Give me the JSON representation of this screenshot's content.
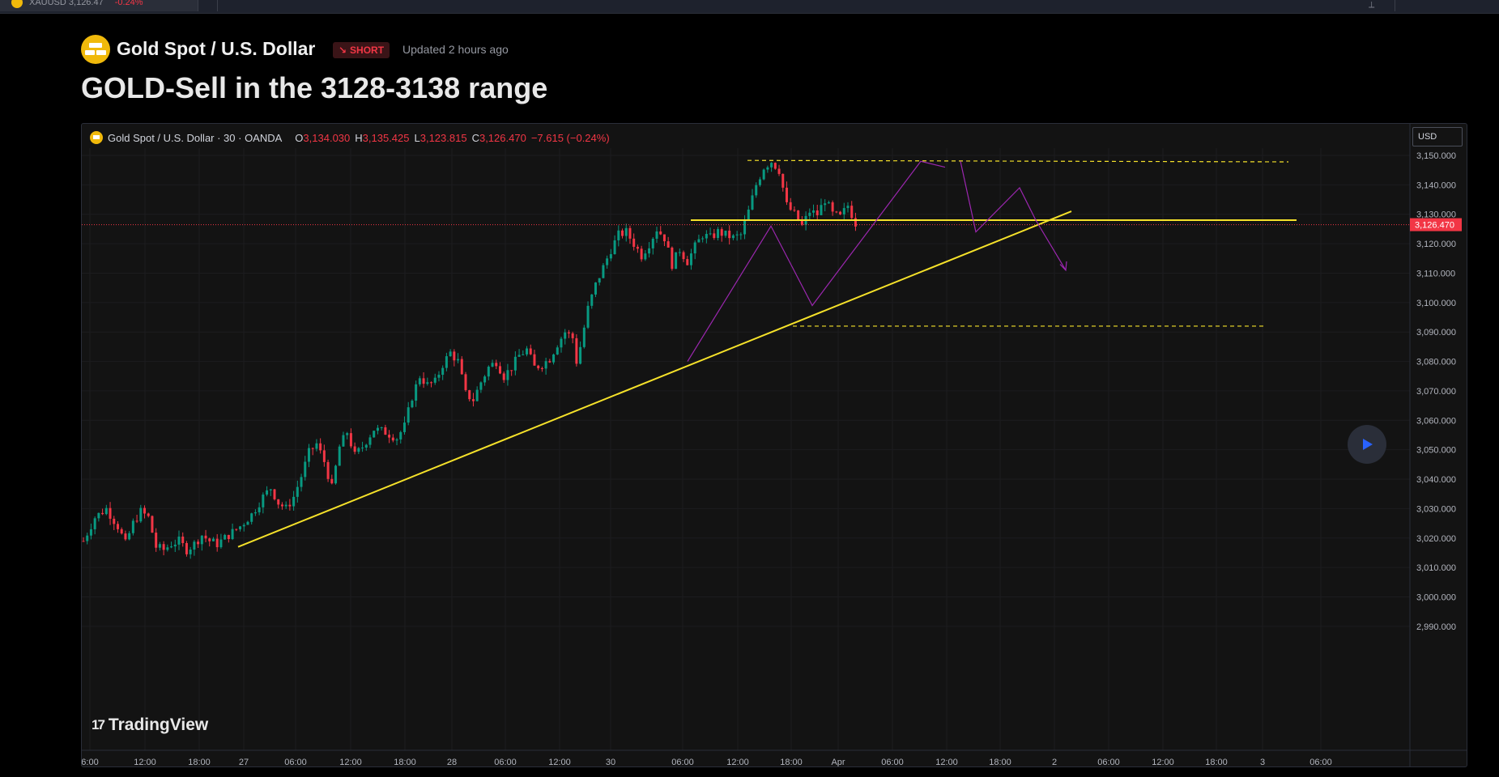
{
  "topbar": {
    "tab_text": "XAUUSD  3,126.47",
    "tab_change": "-0.24%"
  },
  "header": {
    "symbol_name": "Gold Spot / U.S. Dollar",
    "direction_badge": "SHORT",
    "updated": "Updated 2 hours ago",
    "title": "GOLD-Sell in the 3128-3138 range"
  },
  "legend": {
    "symbol": "Gold Spot  /  U.S. Dollar · 30 · OANDA",
    "o_label": "O",
    "o_value": "3,134.030",
    "h_label": "H",
    "h_value": "3,135.425",
    "l_label": "L",
    "l_value": "3,123.815",
    "c_label": "C",
    "c_value": "3,126.470",
    "change": "−7.615 (−0.24%)"
  },
  "currency": "USD",
  "branding": "TradingView",
  "colors": {
    "up": "#089981",
    "down": "#f23645",
    "drawing": "#f5e12a",
    "pattern": "#9c27b0",
    "price_label_bg": "#f23645"
  },
  "chart_data": {
    "type": "candlestick",
    "timeframe": "30",
    "y_axis": {
      "min": 2985,
      "max": 3155,
      "ticks": [
        3150,
        3140,
        3130,
        3120,
        3110,
        3100,
        3090,
        3080,
        3070,
        3060,
        3050,
        3040,
        3030,
        3020,
        3010,
        3000,
        2990
      ],
      "tick_labels": [
        "3,150.000",
        "3,140.000",
        "3,130.000",
        "3,120.000",
        "3,110.000",
        "3,100.000",
        "3,090.000",
        "3,080.000",
        "3,070.000",
        "3,060.000",
        "3,050.000",
        "3,040.000",
        "3,030.000",
        "3,020.000",
        "3,010.000",
        "3,000.000",
        "2,990.000"
      ]
    },
    "x_axis": {
      "labels": [
        "6:00",
        "12:00",
        "18:00",
        "27",
        "06:00",
        "12:00",
        "18:00",
        "28",
        "06:00",
        "12:00",
        "30",
        "06:00",
        "12:00",
        "18:00",
        "Apr",
        "06:00",
        "12:00",
        "18:00",
        "2",
        "06:00",
        "12:00",
        "18:00",
        "3",
        "06:00"
      ]
    },
    "last_price": 3126.47,
    "last_price_label": "3,126.470",
    "price_path": [
      [
        0,
        3019
      ],
      [
        3,
        3027
      ],
      [
        6,
        3030
      ],
      [
        9,
        3024
      ],
      [
        11,
        3018
      ],
      [
        13,
        3025
      ],
      [
        15,
        3029
      ],
      [
        17,
        3027
      ],
      [
        19,
        3017
      ],
      [
        21,
        3016
      ],
      [
        23,
        3018
      ],
      [
        25,
        3019
      ],
      [
        27,
        3016
      ],
      [
        29,
        3018
      ],
      [
        31,
        3021
      ],
      [
        33,
        3019
      ],
      [
        35,
        3018
      ],
      [
        38,
        3021
      ],
      [
        41,
        3024
      ],
      [
        44,
        3028
      ],
      [
        47,
        3034
      ],
      [
        49,
        3037
      ],
      [
        51,
        3032
      ],
      [
        53,
        3030
      ],
      [
        55,
        3034
      ],
      [
        57,
        3041
      ],
      [
        59,
        3049
      ],
      [
        61,
        3052
      ],
      [
        63,
        3046
      ],
      [
        65,
        3037
      ],
      [
        67,
        3051
      ],
      [
        69,
        3056
      ],
      [
        71,
        3048
      ],
      [
        73,
        3051
      ],
      [
        76,
        3057
      ],
      [
        79,
        3056
      ],
      [
        82,
        3054
      ],
      [
        84,
        3058
      ],
      [
        86,
        3068
      ],
      [
        88,
        3075
      ],
      [
        90,
        3072
      ],
      [
        92,
        3073
      ],
      [
        94,
        3079
      ],
      [
        96,
        3083
      ],
      [
        98,
        3080
      ],
      [
        100,
        3069
      ],
      [
        102,
        3067
      ],
      [
        104,
        3073
      ],
      [
        106,
        3078
      ],
      [
        108,
        3080
      ],
      [
        110,
        3075
      ],
      [
        112,
        3078
      ],
      [
        114,
        3082
      ],
      [
        116,
        3084
      ],
      [
        118,
        3078
      ],
      [
        120,
        3079
      ],
      [
        122,
        3081
      ],
      [
        124,
        3086
      ],
      [
        126,
        3090
      ],
      [
        128,
        3088
      ],
      [
        129,
        3080
      ],
      [
        130,
        3085
      ],
      [
        132,
        3098
      ],
      [
        134,
        3106
      ],
      [
        136,
        3112
      ],
      [
        138,
        3118
      ],
      [
        140,
        3123
      ],
      [
        142,
        3124
      ],
      [
        144,
        3120
      ],
      [
        146,
        3116
      ],
      [
        148,
        3120
      ],
      [
        150,
        3125
      ],
      [
        152,
        3122
      ],
      [
        154,
        3113
      ],
      [
        156,
        3118
      ],
      [
        158,
        3114
      ],
      [
        160,
        3119
      ],
      [
        162,
        3123
      ],
      [
        164,
        3122
      ],
      [
        166,
        3124
      ],
      [
        168,
        3123
      ],
      [
        170,
        3122
      ],
      [
        172,
        3123
      ],
      [
        174,
        3131
      ],
      [
        176,
        3140
      ],
      [
        178,
        3146
      ],
      [
        180,
        3148
      ],
      [
        182,
        3145
      ],
      [
        184,
        3133
      ],
      [
        186,
        3130
      ],
      [
        188,
        3126
      ],
      [
        190,
        3131
      ],
      [
        192,
        3130
      ],
      [
        194,
        3135
      ],
      [
        196,
        3130
      ],
      [
        198,
        3129
      ],
      [
        200,
        3133
      ],
      [
        202,
        3127
      ]
    ],
    "drawings": [
      {
        "type": "horizontal-dashed",
        "level": 3148
      },
      {
        "type": "horizontal-dashed",
        "level": 3092
      },
      {
        "type": "horizontal-line",
        "level": 3128
      },
      {
        "type": "trendline",
        "from": [
          "27 06:00",
          3017
        ],
        "to": [
          "Apr 18:00",
          3131
        ]
      }
    ]
  }
}
